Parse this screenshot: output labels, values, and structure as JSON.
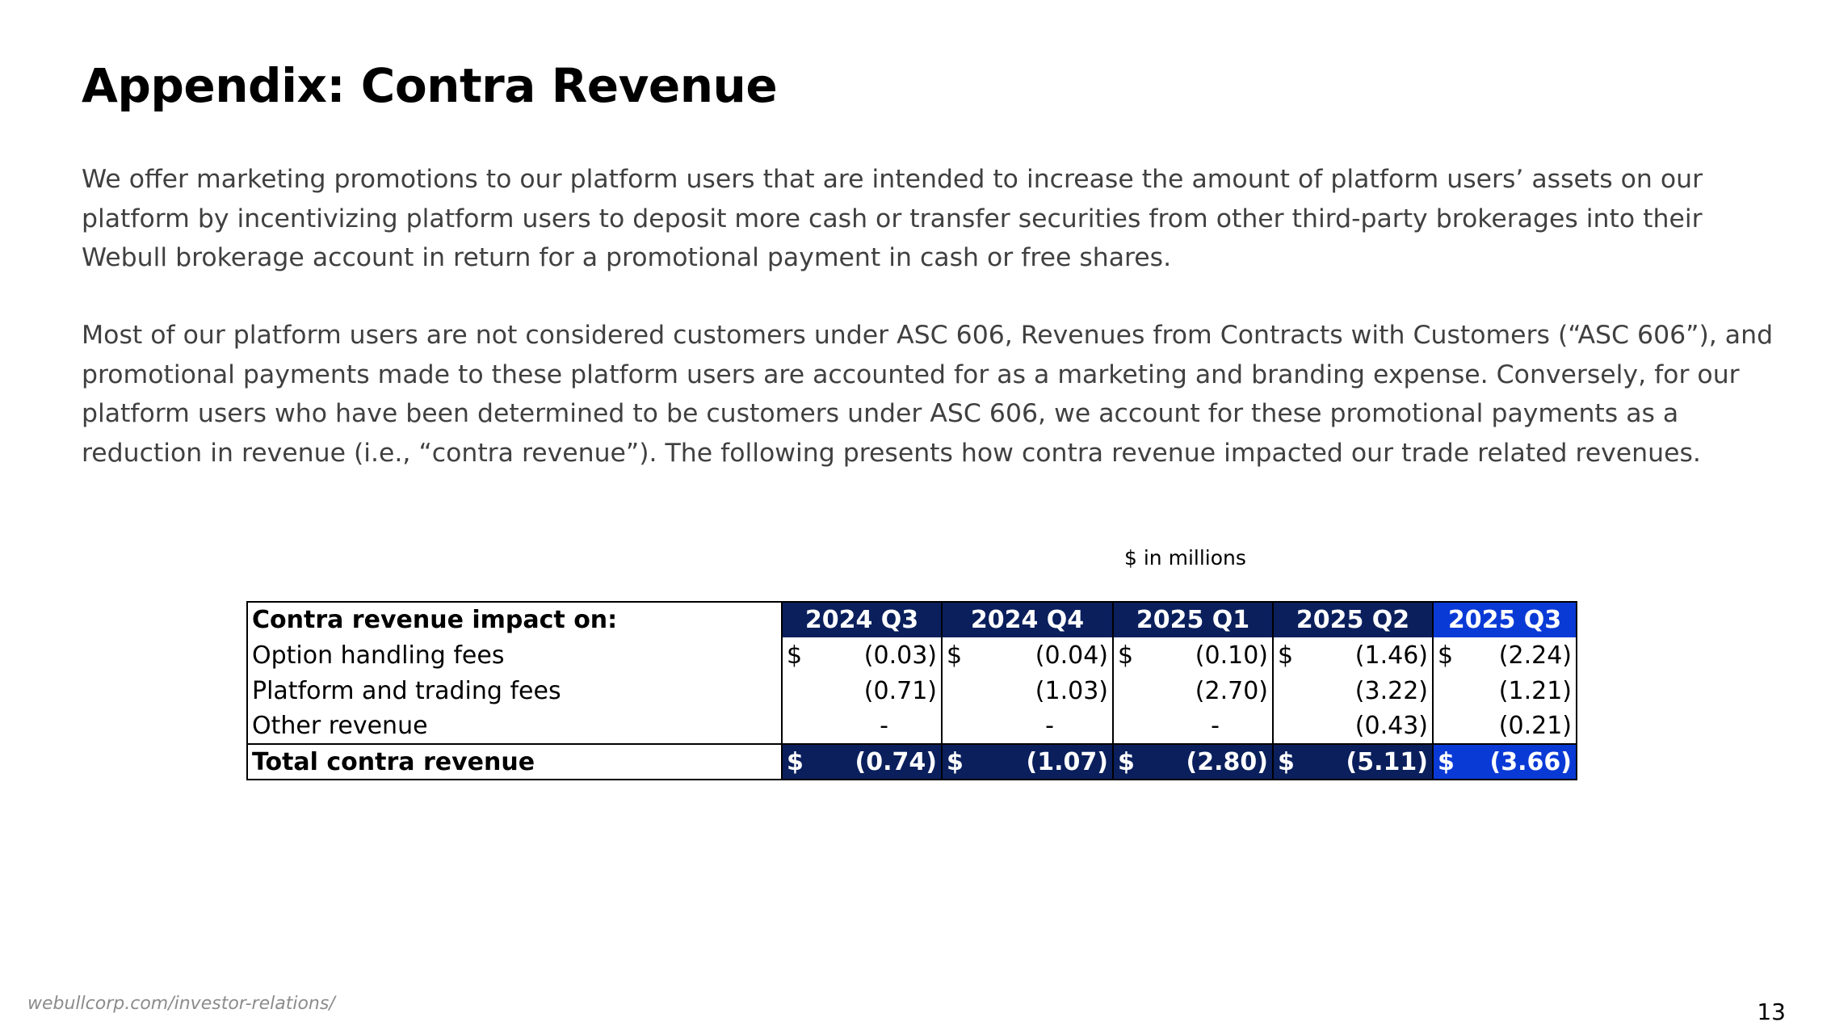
{
  "title": "Appendix: Contra Revenue",
  "paragraphs": [
    "We offer marketing promotions to our platform users that are intended to increase the amount of platform users’ assets on our platform by incentivizing platform users to deposit more cash or transfer securities from other third-party brokerages into their Webull brokerage account in return for a promotional payment in cash or free shares.",
    "Most of our platform users are not considered customers under ASC 606, Revenues from Contracts with Customers (“ASC 606”), and promotional payments made to these platform users are accounted for as a marketing and branding expense. Conversely, for our platform users who have been determined to be customers under ASC 606, we account for these promotional payments as a reduction in revenue (i.e., “contra revenue”).  The following presents how contra revenue impacted our trade related revenues."
  ],
  "units_note": "$ in millions",
  "table": {
    "header_label": "Contra revenue impact on:",
    "periods": [
      "2024 Q3",
      "2024 Q4",
      "2025 Q1",
      "2025 Q2",
      "2025 Q3"
    ],
    "currency_symbol": "$",
    "rows": [
      {
        "label": "Option handling fees",
        "values": [
          "(0.03)",
          "(0.04)",
          "(0.10)",
          "(1.46)",
          "(2.24)"
        ]
      },
      {
        "label": "Platform and trading fees",
        "values": [
          "(0.71)",
          "(1.03)",
          "(2.70)",
          "(3.22)",
          "(1.21)"
        ]
      },
      {
        "label": "Other revenue",
        "values": [
          "-",
          "-",
          "-",
          "(0.43)",
          "(0.21)"
        ]
      }
    ],
    "total": {
      "label": "Total contra revenue",
      "values": [
        "(0.74)",
        "(1.07)",
        "(2.80)",
        "(5.11)",
        "(3.66)"
      ]
    }
  },
  "colors": {
    "header_navy": "#0a1f5c",
    "highlight_blue": "#0a3ad6"
  },
  "footer": {
    "url": "webullcorp.com/investor-relations/",
    "page_number": "13"
  }
}
